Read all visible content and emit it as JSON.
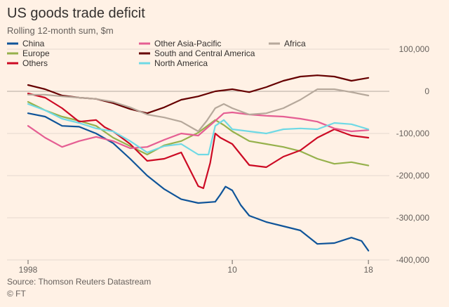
{
  "header": {
    "title": "US goods trade deficit",
    "subtitle": "Rolling 12-month sum, $m"
  },
  "footer": {
    "source": "Source: Thomson Reuters Datastream",
    "credit": "© FT"
  },
  "chart_data": {
    "type": "line",
    "title": "US goods trade deficit",
    "subtitle": "Rolling 12-month sum, $m",
    "xlabel": "",
    "ylabel": "",
    "xlim": [
      1998,
      2018.2
    ],
    "ylim": [
      -400000,
      100000
    ],
    "x_ticks": [
      1998,
      2010,
      2018
    ],
    "x_tick_labels": [
      "1998",
      "10",
      "18"
    ],
    "y_ticks": [
      100000,
      0,
      -100000,
      -200000,
      -300000,
      -400000
    ],
    "y_tick_labels": [
      "100,000",
      "0",
      "-100,000",
      "-200,000",
      "-300,000",
      "-400,000"
    ],
    "grid": true,
    "legend_position": "top-left",
    "series": [
      {
        "name": "China",
        "color": "#0f5499",
        "x": [
          1998,
          1999,
          2000,
          2001,
          2002,
          2003,
          2004,
          2005,
          2006,
          2007,
          2008,
          2009,
          2009.3,
          2009.6,
          2010,
          2010.5,
          2011,
          2012,
          2013,
          2014,
          2015,
          2016,
          2017,
          2017.6,
          2018
        ],
        "y": [
          -52000,
          -60000,
          -82000,
          -84000,
          -100000,
          -123000,
          -160000,
          -200000,
          -232000,
          -256000,
          -265000,
          -262000,
          -245000,
          -226000,
          -235000,
          -270000,
          -295000,
          -310000,
          -320000,
          -330000,
          -362000,
          -360000,
          -347000,
          -355000,
          -378000
        ]
      },
      {
        "name": "Europe",
        "color": "#96b14c",
        "x": [
          1998,
          1999,
          2000,
          2001,
          2002,
          2003,
          2004,
          2005,
          2006,
          2007,
          2008,
          2009,
          2009.5,
          2010,
          2011,
          2012,
          2013,
          2014,
          2015,
          2016,
          2017,
          2018
        ],
        "y": [
          -25000,
          -45000,
          -60000,
          -70000,
          -82000,
          -110000,
          -130000,
          -150000,
          -128000,
          -118000,
          -98000,
          -68000,
          -80000,
          -95000,
          -118000,
          -125000,
          -132000,
          -142000,
          -160000,
          -172000,
          -168000,
          -176000
        ]
      },
      {
        "name": "Others",
        "color": "#cc0a24",
        "x": [
          1998,
          1999,
          2000,
          2001,
          2002,
          2002.5,
          2003,
          2004,
          2005,
          2006,
          2007,
          2008,
          2008.3,
          2008.7,
          2009,
          2009.3,
          2010,
          2011,
          2012,
          2013,
          2014,
          2015,
          2016,
          2017,
          2018
        ],
        "y": [
          -5000,
          -15000,
          -40000,
          -72000,
          -68000,
          -85000,
          -95000,
          -125000,
          -165000,
          -160000,
          -145000,
          -225000,
          -230000,
          -170000,
          -100000,
          -110000,
          -125000,
          -175000,
          -180000,
          -155000,
          -140000,
          -110000,
          -90000,
          -105000,
          -110000
        ]
      },
      {
        "name": "Other Asia-Pacific",
        "color": "#e55e93",
        "x": [
          1998,
          1999,
          2000,
          2001,
          2002,
          2003,
          2004,
          2005,
          2006,
          2007,
          2008,
          2009,
          2009.5,
          2010,
          2011,
          2012,
          2013,
          2014,
          2015,
          2016,
          2017,
          2018
        ],
        "y": [
          -82000,
          -110000,
          -132000,
          -118000,
          -108000,
          -118000,
          -135000,
          -132000,
          -115000,
          -100000,
          -105000,
          -70000,
          -52000,
          -50000,
          -55000,
          -58000,
          -60000,
          -65000,
          -72000,
          -88000,
          -95000,
          -92000
        ]
      },
      {
        "name": "South and Central America",
        "color": "#660000",
        "x": [
          1998,
          1999,
          2000,
          2001,
          2002,
          2003,
          2004,
          2005,
          2006,
          2007,
          2008,
          2009,
          2010,
          2011,
          2012,
          2013,
          2014,
          2015,
          2016,
          2017,
          2018
        ],
        "y": [
          15000,
          5000,
          -10000,
          -15000,
          -18000,
          -28000,
          -42000,
          -52000,
          -38000,
          -20000,
          -12000,
          0,
          5000,
          -2000,
          10000,
          25000,
          35000,
          38000,
          35000,
          25000,
          32000
        ]
      },
      {
        "name": "North America",
        "color": "#6fd9e5",
        "x": [
          1998,
          1999,
          2000,
          2001,
          2002,
          2003,
          2004,
          2005,
          2006,
          2007,
          2008,
          2008.6,
          2009,
          2009.5,
          2010,
          2011,
          2012,
          2013,
          2014,
          2015,
          2016,
          2017,
          2018
        ],
        "y": [
          -30000,
          -45000,
          -65000,
          -75000,
          -88000,
          -95000,
          -118000,
          -145000,
          -130000,
          -125000,
          -150000,
          -150000,
          -82000,
          -68000,
          -90000,
          -95000,
          -100000,
          -90000,
          -88000,
          -90000,
          -75000,
          -78000,
          -90000
        ]
      },
      {
        "name": "Africa",
        "color": "#b6a89b",
        "x": [
          1998,
          1999,
          2000,
          2001,
          2002,
          2003,
          2004,
          2005,
          2006,
          2007,
          2008,
          2008.5,
          2009,
          2009.5,
          2010,
          2011,
          2012,
          2013,
          2014,
          2015,
          2016,
          2017,
          2018
        ],
        "y": [
          -8000,
          -8000,
          -12000,
          -15000,
          -18000,
          -25000,
          -38000,
          -55000,
          -62000,
          -72000,
          -95000,
          -70000,
          -40000,
          -30000,
          -40000,
          -55000,
          -52000,
          -40000,
          -20000,
          5000,
          5000,
          -2000,
          -10000
        ]
      }
    ]
  }
}
